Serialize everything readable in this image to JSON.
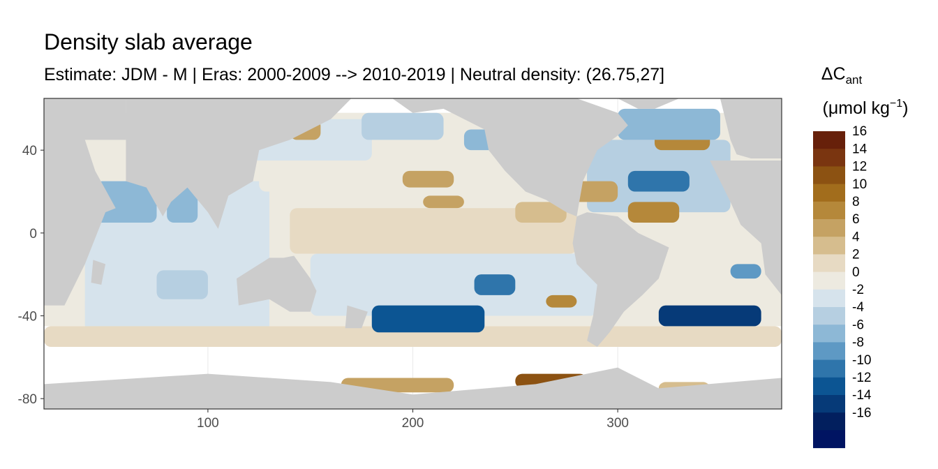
{
  "chart_data": {
    "type": "heatmap",
    "title": "Density slab average",
    "subtitle": "Estimate: JDM - M | Eras: 2000-2009 --> 2010-2019 | Neutral density: (26.75,27]",
    "xlabel": "",
    "ylabel": "",
    "xlim": [
      20,
      380
    ],
    "ylim": [
      -85,
      65
    ],
    "x_ticks": [
      100,
      200,
      300
    ],
    "y_ticks": [
      40,
      0,
      -40,
      -80
    ],
    "grid": true,
    "legend": {
      "placement": "right",
      "title_main": "ΔC",
      "title_sub": "ant",
      "title_units_prefix": "(μmol kg",
      "title_units_sup": "−1",
      "title_units_suffix": ")",
      "bins": [
        {
          "label": "16",
          "color": "#67200a"
        },
        {
          "label": "14",
          "color": "#7a3510"
        },
        {
          "label": "12",
          "color": "#8c5212"
        },
        {
          "label": "10",
          "color": "#a26d1c"
        },
        {
          "label": "8",
          "color": "#b5883a"
        },
        {
          "label": "6",
          "color": "#c5a263"
        },
        {
          "label": "4",
          "color": "#d6bd8e"
        },
        {
          "label": "2",
          "color": "#e7dac3"
        },
        {
          "label": "0",
          "color": "#edeae0"
        },
        {
          "label": "-2",
          "color": "#d6e3ec"
        },
        {
          "label": "-4",
          "color": "#b6cfe1"
        },
        {
          "label": "-6",
          "color": "#8db8d6"
        },
        {
          "label": "-8",
          "color": "#5e99c4"
        },
        {
          "label": "-10",
          "color": "#2f75ab"
        },
        {
          "label": "-12",
          "color": "#0c5593"
        },
        {
          "label": "-14",
          "color": "#063a78"
        },
        {
          "label": "-16",
          "color": "#021f5e"
        },
        {
          "label": "",
          "color": "#001462"
        }
      ]
    },
    "land_color": "#cccccc",
    "nodata_color": "#ffffff",
    "regions": [
      {
        "name": "indian-ocean",
        "lon": [
          40,
          130
        ],
        "lat": [
          -40,
          25
        ],
        "value": -3
      },
      {
        "name": "arabian-sea",
        "lon": [
          45,
          75
        ],
        "lat": [
          5,
          25
        ],
        "value": -7
      },
      {
        "name": "bay-of-bengal",
        "lon": [
          80,
          95
        ],
        "lat": [
          5,
          22
        ],
        "value": -6
      },
      {
        "name": "south-indian-band",
        "lon": [
          40,
          130
        ],
        "lat": [
          -48,
          -30
        ],
        "value": -2
      },
      {
        "name": "indian-blue-patch",
        "lon": [
          75,
          100
        ],
        "lat": [
          -32,
          -18
        ],
        "value": -5
      },
      {
        "name": "southern-ocean-fringe",
        "lon": [
          20,
          380
        ],
        "lat": [
          -55,
          -45
        ],
        "value": 1
      },
      {
        "name": "north-pacific",
        "lon": [
          125,
          245
        ],
        "lat": [
          20,
          58
        ],
        "value": -1
      },
      {
        "name": "north-pacific-west",
        "lon": [
          120,
          180
        ],
        "lat": [
          35,
          55
        ],
        "value": -2
      },
      {
        "name": "kuroshio-blue",
        "lon": [
          175,
          215
        ],
        "lat": [
          45,
          58
        ],
        "value": -4
      },
      {
        "name": "gulf-alaska",
        "lon": [
          225,
          240
        ],
        "lat": [
          40,
          50
        ],
        "value": -6
      },
      {
        "name": "north-pacific-tan",
        "lon": [
          195,
          220
        ],
        "lat": [
          22,
          30
        ],
        "value": 6
      },
      {
        "name": "north-pacific-tan-2",
        "lon": [
          205,
          225
        ],
        "lat": [
          12,
          18
        ],
        "value": 6
      },
      {
        "name": "okhotsk-tan",
        "lon": [
          140,
          155
        ],
        "lat": [
          45,
          55
        ],
        "value": 5
      },
      {
        "name": "equatorial-pacific",
        "lon": [
          140,
          280
        ],
        "lat": [
          -10,
          12
        ],
        "value": 2
      },
      {
        "name": "equatorial-tan-east",
        "lon": [
          250,
          275
        ],
        "lat": [
          5,
          15
        ],
        "value": 4
      },
      {
        "name": "south-pacific",
        "lon": [
          150,
          290
        ],
        "lat": [
          -40,
          -10
        ],
        "value": -2
      },
      {
        "name": "south-pacific-deep",
        "lon": [
          180,
          235
        ],
        "lat": [
          -48,
          -35
        ],
        "value": -12
      },
      {
        "name": "south-pacific-mid",
        "lon": [
          230,
          250
        ],
        "lat": [
          -30,
          -20
        ],
        "value": -10
      },
      {
        "name": "peru-tan",
        "lon": [
          265,
          280
        ],
        "lat": [
          -36,
          -30
        ],
        "value": 7
      },
      {
        "name": "north-atlantic",
        "lon": [
          285,
          355
        ],
        "lat": [
          10,
          45
        ],
        "value": -4
      },
      {
        "name": "north-atlantic-deep",
        "lon": [
          305,
          335
        ],
        "lat": [
          20,
          30
        ],
        "value": -11
      },
      {
        "name": "caribbean-tan",
        "lon": [
          265,
          300
        ],
        "lat": [
          15,
          25
        ],
        "value": 6
      },
      {
        "name": "atlantic-tan",
        "lon": [
          305,
          330
        ],
        "lat": [
          5,
          15
        ],
        "value": 8
      },
      {
        "name": "north-east-atlantic-tan",
        "lon": [
          318,
          345
        ],
        "lat": [
          40,
          50
        ],
        "value": 7
      },
      {
        "name": "subpolar-atlantic",
        "lon": [
          300,
          350
        ],
        "lat": [
          45,
          60
        ],
        "value": -6
      },
      {
        "name": "south-atlantic",
        "lon": [
          315,
          375
        ],
        "lat": [
          -40,
          -10
        ],
        "value": -1
      },
      {
        "name": "south-atlantic-deep",
        "lon": [
          320,
          370
        ],
        "lat": [
          -45,
          -35
        ],
        "value": -15
      },
      {
        "name": "benguela-blue",
        "lon": [
          355,
          370
        ],
        "lat": [
          -22,
          -15
        ],
        "value": -9
      },
      {
        "name": "ross-sea-tan",
        "lon": [
          165,
          220
        ],
        "lat": [
          -77,
          -70
        ],
        "value": 5
      },
      {
        "name": "amundsen-tan",
        "lon": [
          250,
          285
        ],
        "lat": [
          -75,
          -68
        ],
        "value": 11
      },
      {
        "name": "weddell-tan",
        "lon": [
          320,
          345
        ],
        "lat": [
          -78,
          -72
        ],
        "value": 3
      }
    ]
  }
}
